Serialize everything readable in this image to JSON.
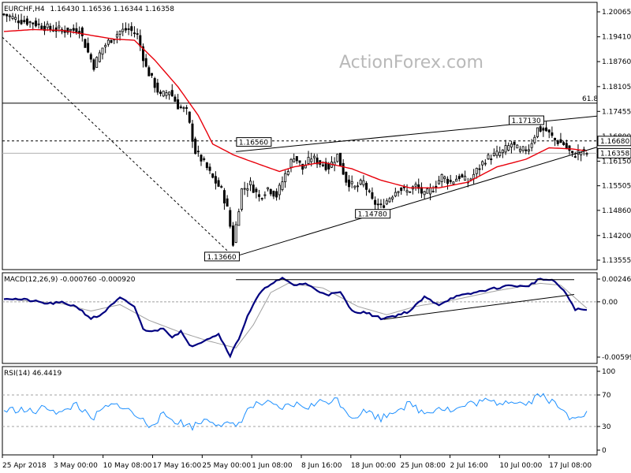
{
  "header": {
    "symbol": "EURCHF,H4",
    "ohlc": "1.16430 1.16536 1.16344 1.16358",
    "macd_label": "MACD(12,26,9) -0.000760 -0.000920",
    "rsi_label": "RSI(14) 46.4419"
  },
  "watermark": "ActionForex.com",
  "chart_data": [
    {
      "type": "candlestick",
      "name": "EURCHF,H4",
      "x_ticks": [
        "25 Apr 2018",
        "3 May 00:00",
        "10 May 08:00",
        "17 May 16:00",
        "25 May 00:00",
        "1 Jun 08:00",
        "8 Jun 16:00",
        "18 Jun 00:00",
        "25 Jun 08:00",
        "2 Jul 16:00",
        "10 Jul 00:00",
        "17 Jul 08:00"
      ],
      "y_ticks": [
        "1.20065",
        "1.19410",
        "1.18760",
        "1.18105",
        "1.17455",
        "1.16800",
        "1.16150",
        "1.15505",
        "1.14860",
        "1.14200",
        "1.13555"
      ],
      "ylim": [
        1.13555,
        1.20065
      ],
      "price_labels": [
        "1.16680",
        "1.16358"
      ],
      "anchors": [
        {
          "t": 0,
          "p": 1.2
        },
        {
          "t": 5,
          "p": 1.1985
        },
        {
          "t": 10,
          "p": 1.1978
        },
        {
          "t": 16,
          "p": 1.1962
        },
        {
          "t": 22,
          "p": 1.1958
        },
        {
          "t": 26,
          "p": 1.196
        },
        {
          "t": 29,
          "p": 1.19
        },
        {
          "t": 31,
          "p": 1.1865
        },
        {
          "t": 34,
          "p": 1.1912
        },
        {
          "t": 37,
          "p": 1.1935
        },
        {
          "t": 40,
          "p": 1.1955
        },
        {
          "t": 43,
          "p": 1.1962
        },
        {
          "t": 46,
          "p": 1.1945
        },
        {
          "t": 49,
          "p": 1.186
        },
        {
          "t": 52,
          "p": 1.1815
        },
        {
          "t": 54,
          "p": 1.1785
        },
        {
          "t": 57,
          "p": 1.18
        },
        {
          "t": 60,
          "p": 1.176
        },
        {
          "t": 63,
          "p": 1.1745
        },
        {
          "t": 66,
          "p": 1.164
        },
        {
          "t": 69,
          "p": 1.161
        },
        {
          "t": 72,
          "p": 1.157
        },
        {
          "t": 75,
          "p": 1.154
        },
        {
          "t": 77,
          "p": 1.149
        },
        {
          "t": 79,
          "p": 1.14
        },
        {
          "t": 82,
          "p": 1.154
        },
        {
          "t": 85,
          "p": 1.1555
        },
        {
          "t": 88,
          "p": 1.152
        },
        {
          "t": 91,
          "p": 1.1545
        },
        {
          "t": 94,
          "p": 1.1525
        },
        {
          "t": 97,
          "p": 1.158
        },
        {
          "t": 100,
          "p": 1.163
        },
        {
          "t": 103,
          "p": 1.1595
        },
        {
          "t": 106,
          "p": 1.1625
        },
        {
          "t": 109,
          "p": 1.161
        },
        {
          "t": 112,
          "p": 1.16
        },
        {
          "t": 115,
          "p": 1.163
        },
        {
          "t": 118,
          "p": 1.1565
        },
        {
          "t": 121,
          "p": 1.1545
        },
        {
          "t": 124,
          "p": 1.156
        },
        {
          "t": 127,
          "p": 1.151
        },
        {
          "t": 130,
          "p": 1.1495
        },
        {
          "t": 133,
          "p": 1.152
        },
        {
          "t": 136,
          "p": 1.1545
        },
        {
          "t": 139,
          "p": 1.1535
        },
        {
          "t": 142,
          "p": 1.155
        },
        {
          "t": 145,
          "p": 1.1525
        },
        {
          "t": 148,
          "p": 1.1545
        },
        {
          "t": 151,
          "p": 1.1575
        },
        {
          "t": 154,
          "p": 1.156
        },
        {
          "t": 157,
          "p": 1.1575
        },
        {
          "t": 160,
          "p": 1.156
        },
        {
          "t": 163,
          "p": 1.159
        },
        {
          "t": 166,
          "p": 1.162
        },
        {
          "t": 169,
          "p": 1.163
        },
        {
          "t": 172,
          "p": 1.164
        },
        {
          "t": 175,
          "p": 1.166
        },
        {
          "t": 178,
          "p": 1.164
        },
        {
          "t": 181,
          "p": 1.165
        },
        {
          "t": 184,
          "p": 1.17
        },
        {
          "t": 187,
          "p": 1.1695
        },
        {
          "t": 190,
          "p": 1.167
        },
        {
          "t": 193,
          "p": 1.166
        },
        {
          "t": 196,
          "p": 1.163
        },
        {
          "t": 199,
          "p": 1.164
        },
        {
          "t": 201,
          "p": 1.1636
        }
      ],
      "ma_anchors": [
        {
          "t": 0,
          "p": 1.1955
        },
        {
          "t": 10,
          "p": 1.196
        },
        {
          "t": 20,
          "p": 1.1958
        },
        {
          "t": 30,
          "p": 1.1945
        },
        {
          "t": 38,
          "p": 1.1935
        },
        {
          "t": 45,
          "p": 1.1932
        },
        {
          "t": 52,
          "p": 1.188
        },
        {
          "t": 60,
          "p": 1.181
        },
        {
          "t": 67,
          "p": 1.1735
        },
        {
          "t": 72,
          "p": 1.166
        },
        {
          "t": 79,
          "p": 1.1632
        },
        {
          "t": 85,
          "p": 1.1615
        },
        {
          "t": 95,
          "p": 1.1588
        },
        {
          "t": 100,
          "p": 1.16
        },
        {
          "t": 110,
          "p": 1.1612
        },
        {
          "t": 120,
          "p": 1.1595
        },
        {
          "t": 130,
          "p": 1.1565
        },
        {
          "t": 140,
          "p": 1.1545
        },
        {
          "t": 150,
          "p": 1.1545
        },
        {
          "t": 160,
          "p": 1.156
        },
        {
          "t": 170,
          "p": 1.16
        },
        {
          "t": 180,
          "p": 1.162
        },
        {
          "t": 188,
          "p": 1.165
        },
        {
          "t": 196,
          "p": 1.1647
        },
        {
          "t": 201,
          "p": 1.1642
        }
      ],
      "annotations": [
        {
          "label": "1.16560",
          "t": 90,
          "p": 1.1656
        },
        {
          "label": "1.13660",
          "t": 79,
          "p": 1.1366
        },
        {
          "label": "1.14780",
          "t": 131,
          "p": 1.1478
        },
        {
          "label": "1.17130",
          "t": 184,
          "p": 1.1713
        }
      ],
      "fib_level": {
        "label": "61.8",
        "p": 1.1767
      },
      "ref_lines": [
        1.1668,
        1.16358
      ],
      "trendlines": [
        {
          "t1": 80,
          "p1": 1.1366,
          "t2": 201,
          "p2": 1.163
        },
        {
          "t1": 80,
          "p1": 1.164,
          "t2": 201,
          "p2": 1.1726
        }
      ],
      "dashed_trend": {
        "t1": 0,
        "p1": 1.194,
        "t2": 79,
        "p2": 1.1366
      }
    },
    {
      "type": "line",
      "name": "MACD(12,26,9)",
      "y_ticks": [
        "0.002463",
        "0.00",
        "-0.005992"
      ],
      "ylim": [
        -0.005992,
        0.002463
      ],
      "anchors": [
        {
          "t": 0,
          "v": 0.0004
        },
        {
          "t": 8,
          "v": 0.0002
        },
        {
          "t": 15,
          "v": -0.0002
        },
        {
          "t": 20,
          "v": -0.0001
        },
        {
          "t": 25,
          "v": -0.0005
        },
        {
          "t": 30,
          "v": -0.0018
        },
        {
          "t": 33,
          "v": -0.0015
        },
        {
          "t": 36,
          "v": -0.0007
        },
        {
          "t": 40,
          "v": 0.0004
        },
        {
          "t": 45,
          "v": -0.0005
        },
        {
          "t": 48,
          "v": -0.003
        },
        {
          "t": 52,
          "v": -0.0032
        },
        {
          "t": 55,
          "v": -0.0028
        },
        {
          "t": 58,
          "v": -0.0038
        },
        {
          "t": 61,
          "v": -0.0032
        },
        {
          "t": 64,
          "v": -0.0048
        },
        {
          "t": 67,
          "v": -0.0045
        },
        {
          "t": 70,
          "v": -0.004
        },
        {
          "t": 74,
          "v": -0.0035
        },
        {
          "t": 78,
          "v": -0.0058
        },
        {
          "t": 81,
          "v": -0.004
        },
        {
          "t": 84,
          "v": -0.0015
        },
        {
          "t": 88,
          "v": 0.0008
        },
        {
          "t": 92,
          "v": 0.002
        },
        {
          "t": 96,
          "v": 0.0025
        },
        {
          "t": 100,
          "v": 0.0018
        },
        {
          "t": 104,
          "v": 0.002
        },
        {
          "t": 108,
          "v": 0.0012
        },
        {
          "t": 112,
          "v": 0.0008
        },
        {
          "t": 116,
          "v": 0.001
        },
        {
          "t": 120,
          "v": -0.001
        },
        {
          "t": 125,
          "v": -0.0012
        },
        {
          "t": 130,
          "v": -0.0018
        },
        {
          "t": 135,
          "v": -0.0015
        },
        {
          "t": 140,
          "v": -0.001
        },
        {
          "t": 145,
          "v": 0.0005
        },
        {
          "t": 150,
          "v": -0.0003
        },
        {
          "t": 155,
          "v": 0.0005
        },
        {
          "t": 160,
          "v": 0.0008
        },
        {
          "t": 165,
          "v": 0.0012
        },
        {
          "t": 170,
          "v": 0.0015
        },
        {
          "t": 175,
          "v": 0.0018
        },
        {
          "t": 180,
          "v": 0.0016
        },
        {
          "t": 185,
          "v": 0.0025
        },
        {
          "t": 190,
          "v": 0.0022
        },
        {
          "t": 194,
          "v": 0.0008
        },
        {
          "t": 197,
          "v": -0.0008
        },
        {
          "t": 201,
          "v": -0.0009
        }
      ],
      "signal_anchors": [
        {
          "t": 0,
          "v": 0.0003
        },
        {
          "t": 20,
          "v": -0.0002
        },
        {
          "t": 30,
          "v": -0.001
        },
        {
          "t": 40,
          "v": -0.0003
        },
        {
          "t": 50,
          "v": -0.002
        },
        {
          "t": 60,
          "v": -0.0032
        },
        {
          "t": 70,
          "v": -0.0042
        },
        {
          "t": 80,
          "v": -0.005
        },
        {
          "t": 86,
          "v": -0.0025
        },
        {
          "t": 92,
          "v": 0.001
        },
        {
          "t": 98,
          "v": 0.002
        },
        {
          "t": 110,
          "v": 0.0015
        },
        {
          "t": 122,
          "v": -0.0005
        },
        {
          "t": 132,
          "v": -0.0014
        },
        {
          "t": 142,
          "v": -0.0005
        },
        {
          "t": 155,
          "v": 0.0002
        },
        {
          "t": 170,
          "v": 0.0012
        },
        {
          "t": 185,
          "v": 0.002
        },
        {
          "t": 192,
          "v": 0.0018
        },
        {
          "t": 201,
          "v": -0.0007
        }
      ],
      "trendlines": [
        {
          "t1": 80,
          "v1": 0.0024,
          "t2": 201,
          "v2": 0.0024
        },
        {
          "t1": 131,
          "v1": -0.0019,
          "t2": 201,
          "v2": 0.0008
        }
      ]
    },
    {
      "type": "line",
      "name": "RSI(14)",
      "y_ticks": [
        "100",
        "70",
        "30",
        "0"
      ],
      "ylim": [
        0,
        100
      ],
      "levels": [
        70,
        30
      ],
      "anchors": [
        {
          "t": 0,
          "v": 50
        },
        {
          "t": 5,
          "v": 52
        },
        {
          "t": 10,
          "v": 48
        },
        {
          "t": 15,
          "v": 55
        },
        {
          "t": 20,
          "v": 46
        },
        {
          "t": 25,
          "v": 60
        },
        {
          "t": 30,
          "v": 38
        },
        {
          "t": 35,
          "v": 54
        },
        {
          "t": 40,
          "v": 58
        },
        {
          "t": 45,
          "v": 45
        },
        {
          "t": 50,
          "v": 32
        },
        {
          "t": 55,
          "v": 44
        },
        {
          "t": 60,
          "v": 36
        },
        {
          "t": 65,
          "v": 30
        },
        {
          "t": 70,
          "v": 40
        },
        {
          "t": 75,
          "v": 33
        },
        {
          "t": 80,
          "v": 30
        },
        {
          "t": 85,
          "v": 55
        },
        {
          "t": 90,
          "v": 60
        },
        {
          "t": 95,
          "v": 52
        },
        {
          "t": 100,
          "v": 58
        },
        {
          "t": 105,
          "v": 55
        },
        {
          "t": 110,
          "v": 62
        },
        {
          "t": 115,
          "v": 64
        },
        {
          "t": 120,
          "v": 42
        },
        {
          "t": 125,
          "v": 50
        },
        {
          "t": 130,
          "v": 40
        },
        {
          "t": 135,
          "v": 52
        },
        {
          "t": 140,
          "v": 58
        },
        {
          "t": 145,
          "v": 47
        },
        {
          "t": 150,
          "v": 55
        },
        {
          "t": 155,
          "v": 50
        },
        {
          "t": 160,
          "v": 58
        },
        {
          "t": 165,
          "v": 62
        },
        {
          "t": 170,
          "v": 60
        },
        {
          "t": 175,
          "v": 64
        },
        {
          "t": 180,
          "v": 58
        },
        {
          "t": 185,
          "v": 72
        },
        {
          "t": 190,
          "v": 58
        },
        {
          "t": 195,
          "v": 42
        },
        {
          "t": 198,
          "v": 46
        },
        {
          "t": 201,
          "v": 46
        }
      ]
    }
  ],
  "colors": {
    "candle": "#000000",
    "ma": "#e8000b",
    "macd": "#000080",
    "signal": "#a0a0a0",
    "rsi": "#1e90ff",
    "axis": "#000000",
    "dashed": "#a0a0a0"
  }
}
